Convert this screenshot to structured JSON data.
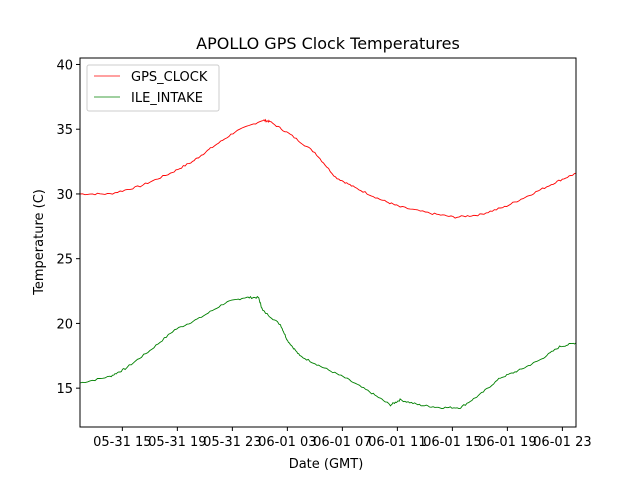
{
  "chart_data": {
    "type": "line",
    "title": "APOLLO GPS Clock Temperatures",
    "xlabel": "Date (GMT)",
    "ylabel": "Temperature (C)",
    "x_unit": "hours since 05-31 00:00 GMT",
    "xlim": [
      11.92,
      47.99
    ],
    "ylim": [
      12.0,
      40.5
    ],
    "xticks": [
      {
        "value": 15,
        "label": "05-31 15"
      },
      {
        "value": 19,
        "label": "05-31 19"
      },
      {
        "value": 23,
        "label": "05-31 23"
      },
      {
        "value": 27,
        "label": "06-01 03"
      },
      {
        "value": 31,
        "label": "06-01 07"
      },
      {
        "value": 35,
        "label": "06-01 11"
      },
      {
        "value": 39,
        "label": "06-01 15"
      },
      {
        "value": 43,
        "label": "06-01 19"
      },
      {
        "value": 47,
        "label": "06-01 23"
      }
    ],
    "yticks": [
      {
        "value": 15,
        "label": "15"
      },
      {
        "value": 20,
        "label": "20"
      },
      {
        "value": 25,
        "label": "25"
      },
      {
        "value": 30,
        "label": "30"
      },
      {
        "value": 35,
        "label": "35"
      },
      {
        "value": 40,
        "label": "40"
      }
    ],
    "grid": false,
    "legend_position": "top-left",
    "series": [
      {
        "name": "GPS_CLOCK",
        "color": "#ff0000",
        "x": [
          11.92,
          14.1,
          16.3,
          18.5,
          20.1,
          21.4,
          23.2,
          25.2,
          25.7,
          27.2,
          29.0,
          30.5,
          31.9,
          33.7,
          35.2,
          37.4,
          39.2,
          41.0,
          42.8,
          44.6,
          46.5,
          47.99
        ],
        "y": [
          30.0,
          30.0,
          30.6,
          31.6,
          32.5,
          33.5,
          34.8,
          35.7,
          35.6,
          34.6,
          33.2,
          31.3,
          30.5,
          29.6,
          29.0,
          28.5,
          28.2,
          28.4,
          29.0,
          29.9,
          30.9,
          31.6
        ]
      },
      {
        "name": "ILE_INTAKE",
        "color": "#008000",
        "x": [
          11.92,
          14.1,
          15.2,
          17.0,
          18.8,
          20.6,
          22.5,
          23.9,
          24.9,
          25.2,
          26.5,
          27.0,
          27.9,
          29.4,
          31.2,
          33.0,
          34.5,
          35.2,
          36.6,
          38.1,
          39.6,
          41.0,
          42.5,
          43.9,
          45.4,
          46.8,
          47.99
        ],
        "y": [
          15.4,
          15.9,
          16.5,
          17.9,
          19.5,
          20.4,
          21.6,
          22.0,
          22.0,
          21.0,
          19.9,
          18.7,
          17.5,
          16.7,
          15.8,
          14.7,
          13.7,
          14.1,
          13.7,
          13.5,
          13.5,
          14.5,
          15.8,
          16.4,
          17.2,
          18.2,
          18.5
        ]
      }
    ]
  }
}
